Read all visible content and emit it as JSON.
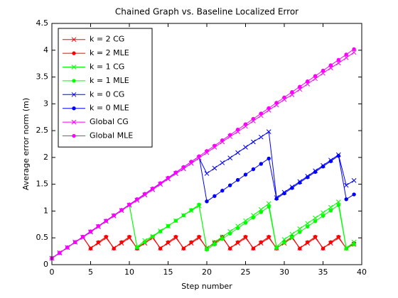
{
  "chart_data": {
    "type": "line",
    "title": "Chained Graph vs. Baseline Localized Error",
    "x_label": "Step number",
    "y_label": "Average error norm (m)",
    "xlim": [
      0,
      40
    ],
    "ylim": [
      0,
      4.5
    ],
    "xticks": [
      0,
      5,
      10,
      15,
      20,
      25,
      30,
      35,
      40
    ],
    "yticks": [
      0,
      0.5,
      1,
      1.5,
      2,
      2.5,
      3,
      3.5,
      4,
      4.5
    ],
    "legend": "northwest",
    "x": [
      0,
      1,
      2,
      3,
      4,
      5,
      6,
      7,
      8,
      9,
      10,
      11,
      12,
      13,
      14,
      15,
      16,
      17,
      18,
      19,
      20,
      21,
      22,
      23,
      24,
      25,
      26,
      27,
      28,
      29,
      30,
      31,
      32,
      33,
      34,
      35,
      36,
      37,
      38,
      39
    ],
    "series": [
      {
        "name": "k = 2 CG",
        "color": "#ff0000",
        "marker": "x",
        "values": [
          0.12,
          0.22,
          0.32,
          0.42,
          0.51,
          0.31,
          0.4,
          0.5,
          0.31,
          0.4,
          0.5,
          0.31,
          0.4,
          0.5,
          0.31,
          0.4,
          0.5,
          0.31,
          0.4,
          0.5,
          0.31,
          0.4,
          0.5,
          0.31,
          0.4,
          0.5,
          0.31,
          0.4,
          0.5,
          0.31,
          0.4,
          0.5,
          0.31,
          0.4,
          0.5,
          0.31,
          0.4,
          0.5,
          0.31,
          0.38
        ]
      },
      {
        "name": "k = 2 MLE",
        "color": "#ff0000",
        "marker": "dot",
        "values": [
          0.12,
          0.22,
          0.32,
          0.42,
          0.52,
          0.3,
          0.42,
          0.52,
          0.3,
          0.42,
          0.52,
          0.3,
          0.42,
          0.52,
          0.3,
          0.42,
          0.52,
          0.3,
          0.42,
          0.52,
          0.3,
          0.42,
          0.52,
          0.3,
          0.42,
          0.52,
          0.3,
          0.42,
          0.52,
          0.3,
          0.42,
          0.52,
          0.3,
          0.42,
          0.52,
          0.3,
          0.42,
          0.52,
          0.3,
          0.4
        ]
      },
      {
        "name": "k = 1 CG",
        "color": "#00ff00",
        "marker": "x",
        "values": [
          0.12,
          0.22,
          0.32,
          0.42,
          0.51,
          0.61,
          0.71,
          0.81,
          0.91,
          1.01,
          1.11,
          0.33,
          0.45,
          0.53,
          0.63,
          0.72,
          0.82,
          0.92,
          1.01,
          1.1,
          0.3,
          0.42,
          0.52,
          0.62,
          0.72,
          0.82,
          0.92,
          1.03,
          1.14,
          0.33,
          0.47,
          0.57,
          0.67,
          0.77,
          0.87,
          0.97,
          1.07,
          1.17,
          0.31,
          0.42
        ]
      },
      {
        "name": "k = 1 MLE",
        "color": "#00ff00",
        "marker": "dot",
        "values": [
          0.12,
          0.22,
          0.32,
          0.42,
          0.52,
          0.62,
          0.72,
          0.82,
          0.92,
          1.02,
          1.12,
          0.32,
          0.42,
          0.52,
          0.62,
          0.72,
          0.82,
          0.92,
          1.02,
          1.12,
          0.28,
          0.38,
          0.48,
          0.58,
          0.68,
          0.78,
          0.88,
          0.98,
          1.08,
          0.31,
          0.41,
          0.51,
          0.61,
          0.71,
          0.81,
          0.91,
          1.01,
          1.11,
          0.3,
          0.38
        ]
      },
      {
        "name": "k = 0 CG",
        "color": "#0000ff",
        "marker": "x",
        "values": [
          0.12,
          0.22,
          0.32,
          0.42,
          0.51,
          0.61,
          0.71,
          0.81,
          0.91,
          1.01,
          1.11,
          1.2,
          1.3,
          1.4,
          1.5,
          1.6,
          1.7,
          1.79,
          1.89,
          1.99,
          1.7,
          1.8,
          1.9,
          1.99,
          2.09,
          2.19,
          2.29,
          2.38,
          2.48,
          1.25,
          1.35,
          1.45,
          1.55,
          1.65,
          1.75,
          1.85,
          1.95,
          2.05,
          1.48,
          1.57
        ]
      },
      {
        "name": "k = 0 MLE",
        "color": "#0000ff",
        "marker": "dot",
        "values": [
          0.12,
          0.22,
          0.32,
          0.42,
          0.52,
          0.62,
          0.72,
          0.82,
          0.92,
          1.02,
          1.12,
          1.22,
          1.32,
          1.42,
          1.52,
          1.62,
          1.72,
          1.82,
          1.92,
          2.02,
          1.18,
          1.28,
          1.38,
          1.48,
          1.58,
          1.68,
          1.78,
          1.88,
          1.98,
          1.23,
          1.33,
          1.43,
          1.53,
          1.63,
          1.73,
          1.83,
          1.93,
          2.03,
          1.22,
          1.31
        ]
      },
      {
        "name": "Global CG",
        "color": "#ff00ff",
        "marker": "x",
        "values": [
          0.12,
          0.22,
          0.32,
          0.42,
          0.51,
          0.61,
          0.71,
          0.81,
          0.91,
          1.01,
          1.11,
          1.2,
          1.3,
          1.4,
          1.5,
          1.6,
          1.7,
          1.79,
          1.89,
          1.99,
          2.09,
          2.19,
          2.29,
          2.39,
          2.48,
          2.58,
          2.68,
          2.78,
          2.88,
          2.98,
          3.08,
          3.17,
          3.27,
          3.37,
          3.47,
          3.57,
          3.67,
          3.76,
          3.86,
          3.96
        ]
      },
      {
        "name": "Global MLE",
        "color": "#ff00ff",
        "marker": "dot",
        "values": [
          0.12,
          0.22,
          0.32,
          0.42,
          0.52,
          0.62,
          0.72,
          0.82,
          0.92,
          1.02,
          1.12,
          1.22,
          1.32,
          1.42,
          1.52,
          1.62,
          1.72,
          1.82,
          1.92,
          2.02,
          2.12,
          2.22,
          2.32,
          2.42,
          2.52,
          2.62,
          2.72,
          2.82,
          2.92,
          3.02,
          3.12,
          3.22,
          3.32,
          3.42,
          3.52,
          3.62,
          3.72,
          3.82,
          3.92,
          4.02
        ]
      }
    ]
  }
}
